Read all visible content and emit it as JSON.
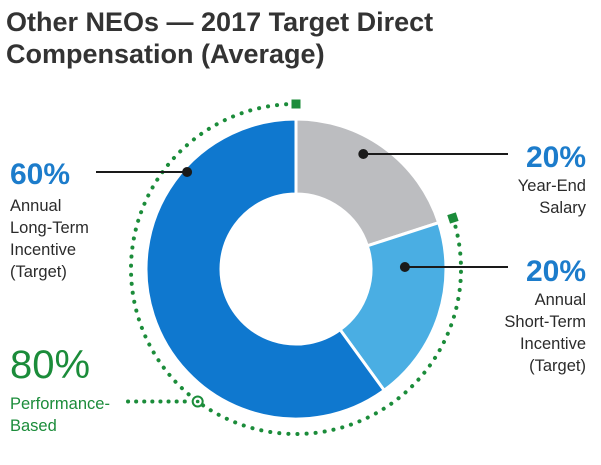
{
  "chart_data": {
    "type": "pie",
    "title_lines": [
      "Other NEOs — 2017 Target Direct",
      "Compensation (Average)"
    ],
    "slices": [
      {
        "percent_label": "20%",
        "label_lines": [
          "Year-End",
          "Salary"
        ],
        "value": 20,
        "color": "#bcbdc0"
      },
      {
        "percent_label": "20%",
        "label_lines": [
          "Annual",
          "Short-Term",
          "Incentive",
          "(Target)"
        ],
        "value": 20,
        "color": "#4aaee3"
      },
      {
        "percent_label": "60%",
        "label_lines": [
          "Annual",
          "Long-Term",
          "Incentive",
          "(Target)"
        ],
        "value": 60,
        "color": "#0f78cf"
      }
    ],
    "annotation": {
      "percent_label": "80%",
      "label_lines": [
        "Performance-",
        "Based"
      ],
      "value": 80,
      "color": "#1b8c3a"
    },
    "text_color": "#2b2b2b",
    "percent_color": "#1c7ccb"
  }
}
